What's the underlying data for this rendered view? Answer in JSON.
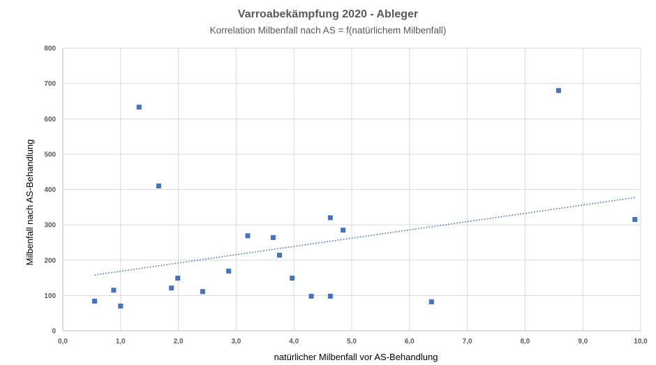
{
  "chart_data": {
    "type": "scatter",
    "title": "Varroabekämpfung 2020 - Ableger",
    "subtitle": "Korrelation Milbenfall nach AS = f(natürlichem Milbenfall)",
    "xlabel": "natürlicher Milbenfall vor AS-Behandlung",
    "ylabel": "Milbenfall nach AS-Behandlung",
    "xlim": [
      0,
      10
    ],
    "ylim": [
      0,
      800
    ],
    "x_ticks": [
      "0,0",
      "1,0",
      "2,0",
      "3,0",
      "4,0",
      "5,0",
      "6,0",
      "7,0",
      "8,0",
      "9,0",
      "10,0"
    ],
    "y_ticks": [
      "0",
      "100",
      "200",
      "300",
      "400",
      "500",
      "600",
      "700",
      "800"
    ],
    "grid": true,
    "legend": "none",
    "marker_color": "#4472c4",
    "trendline": {
      "type": "linear",
      "style": "dotted",
      "color": "#4472c4",
      "x": [
        0.55,
        9.9
      ],
      "y": [
        158,
        377
      ]
    },
    "points": [
      {
        "x": 0.55,
        "y": 84
      },
      {
        "x": 0.88,
        "y": 115
      },
      {
        "x": 1.0,
        "y": 70
      },
      {
        "x": 1.32,
        "y": 633
      },
      {
        "x": 1.66,
        "y": 410
      },
      {
        "x": 1.88,
        "y": 121
      },
      {
        "x": 1.99,
        "y": 149
      },
      {
        "x": 2.42,
        "y": 111
      },
      {
        "x": 2.87,
        "y": 169
      },
      {
        "x": 3.2,
        "y": 269
      },
      {
        "x": 3.64,
        "y": 264
      },
      {
        "x": 3.75,
        "y": 214
      },
      {
        "x": 3.97,
        "y": 149
      },
      {
        "x": 4.3,
        "y": 98
      },
      {
        "x": 4.63,
        "y": 98
      },
      {
        "x": 4.63,
        "y": 320
      },
      {
        "x": 4.85,
        "y": 285
      },
      {
        "x": 6.38,
        "y": 82
      },
      {
        "x": 8.58,
        "y": 680
      },
      {
        "x": 9.9,
        "y": 315
      }
    ]
  }
}
